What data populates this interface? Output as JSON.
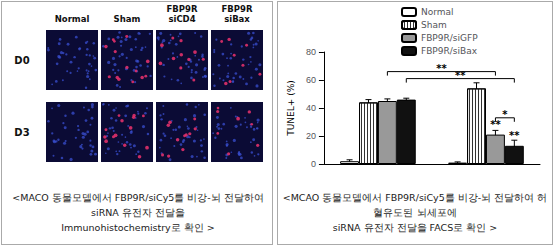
{
  "left_panel": {
    "columns": [
      [
        "Normal"
      ],
      [
        "Sham"
      ],
      [
        "FBP9R",
        "siCD4"
      ],
      [
        "FBP9R",
        "siBax"
      ]
    ],
    "rows": [
      "D0",
      "D3"
    ],
    "caption": [
      "<MACO 동물모델에서 FBP9R/siCy5를 비강-뇌 전달하여 siRNA 유전자 전달을",
      "Immunohistochemistry로 확인 >"
    ]
  },
  "chart_data": {
    "type": "bar",
    "categories": [
      null,
      null
    ],
    "ylabel": "TUNEL+ (%)",
    "ylim": [
      0,
      80
    ],
    "yticks": [
      0,
      20,
      40,
      60,
      80
    ],
    "grid": false,
    "legend": "upper right",
    "series": [
      {
        "name": "Normal",
        "color": "#ffffff",
        "values": [
          2,
          1
        ],
        "errors": [
          1,
          0.5
        ]
      },
      {
        "name": "Sham",
        "color": "#ffffff",
        "marker": "striped",
        "values": [
          44,
          54
        ],
        "errors": [
          2,
          4
        ]
      },
      {
        "name": "FBP9R/siGFP",
        "color": "#999999",
        "values": [
          45,
          21
        ],
        "errors": [
          1.5,
          3
        ]
      },
      {
        "name": "FBP9R/siBax",
        "color": "#111111",
        "values": [
          46,
          13
        ],
        "errors": [
          1,
          4
        ]
      }
    ],
    "annotations": [
      {
        "text": "**",
        "from": [
          0,
          2
        ],
        "to": [
          1,
          2
        ],
        "y": 66
      },
      {
        "text": "**",
        "from": [
          0,
          3
        ],
        "to": [
          1,
          3
        ],
        "y": 61
      },
      {
        "text": "*",
        "from": [
          1,
          2
        ],
        "to": [
          1,
          3
        ],
        "y": 33
      },
      {
        "text": "**",
        "at": [
          1,
          2
        ],
        "y": 26
      },
      {
        "text": "**",
        "at": [
          1,
          3
        ],
        "y": 18
      }
    ]
  },
  "right_caption": [
    "<MCAO 동물모델에서 FBP9R/siCy5를 비강-뇌 전달하여 허혈유도된 뇌세포에",
    "siRNA 유전자 전달을 FACS로 확인 >"
  ]
}
